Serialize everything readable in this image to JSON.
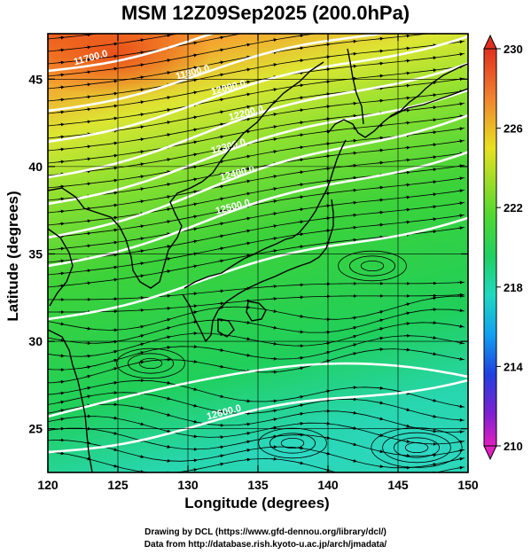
{
  "title": "MSM 12Z09Sep2025 (200.0hPa)",
  "x_axis": {
    "label": "Longitude (degrees)",
    "range": [
      120,
      150
    ],
    "ticks": [
      "120",
      "125",
      "130",
      "135",
      "140",
      "145",
      "150"
    ]
  },
  "y_axis": {
    "label": "Latitude  (degrees)",
    "range": [
      22.5,
      47.6
    ],
    "ticks": [
      "25",
      "30",
      "35",
      "40",
      "45"
    ]
  },
  "colorbar": {
    "range": [
      210,
      230
    ],
    "ticks": [
      "210",
      "214",
      "218",
      "222",
      "226",
      "230"
    ]
  },
  "contour_labels": [
    "11700.0",
    "11800.0",
    "12000.0",
    "12200.0",
    "12300.0",
    "12400.0",
    "12500.0",
    "12600.0"
  ],
  "credits": [
    "Drawing by DCL (https://www.gfd-dennou.org/library/dcl/)",
    "Data from http://database.rish.kyoto-u.ac.jp/arch/jmadata/"
  ]
}
